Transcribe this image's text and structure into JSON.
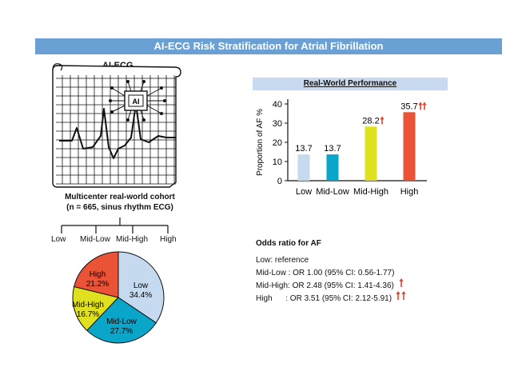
{
  "figure": {
    "title": "AI-ECG Risk Stratification for Atrial Fibrillation",
    "ecg_label": "AI-ECG",
    "chip_label": "AI",
    "cohort_line1": "Multicenter real-world cohort",
    "cohort_line2": "(n = 665, sinus rhythm ECG)",
    "tree_labels": [
      "Low",
      "Mid-Low",
      "Mid-High",
      "High"
    ],
    "performance_title": "Real-World Performance",
    "odds_title": "Odds ratio for AF",
    "odds_lines": [
      {
        "text": "Low: reference",
        "arrows": 0
      },
      {
        "text": "Mid-Low : OR 1.00 (95% CI: 0.56-1.77)",
        "arrows": 0
      },
      {
        "text": "Mid-High: OR 2.48 (95% CI: 1.41-4.36)",
        "arrows": 1
      },
      {
        "text": "High      : OR 3.51 (95% CI: 2.12-5.91)",
        "arrows": 2
      }
    ],
    "colors": {
      "banner": "#6aa0d4",
      "perf_banner": "#c9daf0",
      "arrow": "#e2432a"
    }
  },
  "chart_data": [
    {
      "type": "bar",
      "title": "",
      "xlabel": "",
      "ylabel": "Proportion of AF %",
      "categories": [
        "Low",
        "Mid-Low",
        "Mid-High",
        "High"
      ],
      "values": [
        13.7,
        13.7,
        28.2,
        35.7
      ],
      "value_labels": [
        "13.7",
        "13.7",
        "28.2",
        "35.7"
      ],
      "arrows": [
        0,
        0,
        1,
        2
      ],
      "colors": [
        "#c5d9ef",
        "#0aa6c9",
        "#dfe01e",
        "#ea5336"
      ],
      "ylim": [
        0,
        40
      ],
      "yticks": [
        0,
        10,
        20,
        30,
        40
      ],
      "grid": false
    },
    {
      "type": "pie",
      "categories": [
        "Low",
        "Mid-Low",
        "Mid-High",
        "High"
      ],
      "values": [
        34.4,
        27.7,
        16.7,
        21.2
      ],
      "value_labels": [
        "34.4%",
        "27.7%",
        "16.7%",
        "21.2%"
      ],
      "colors": [
        "#c5d9ef",
        "#0aa6c9",
        "#dfe01e",
        "#ea5336"
      ]
    }
  ]
}
